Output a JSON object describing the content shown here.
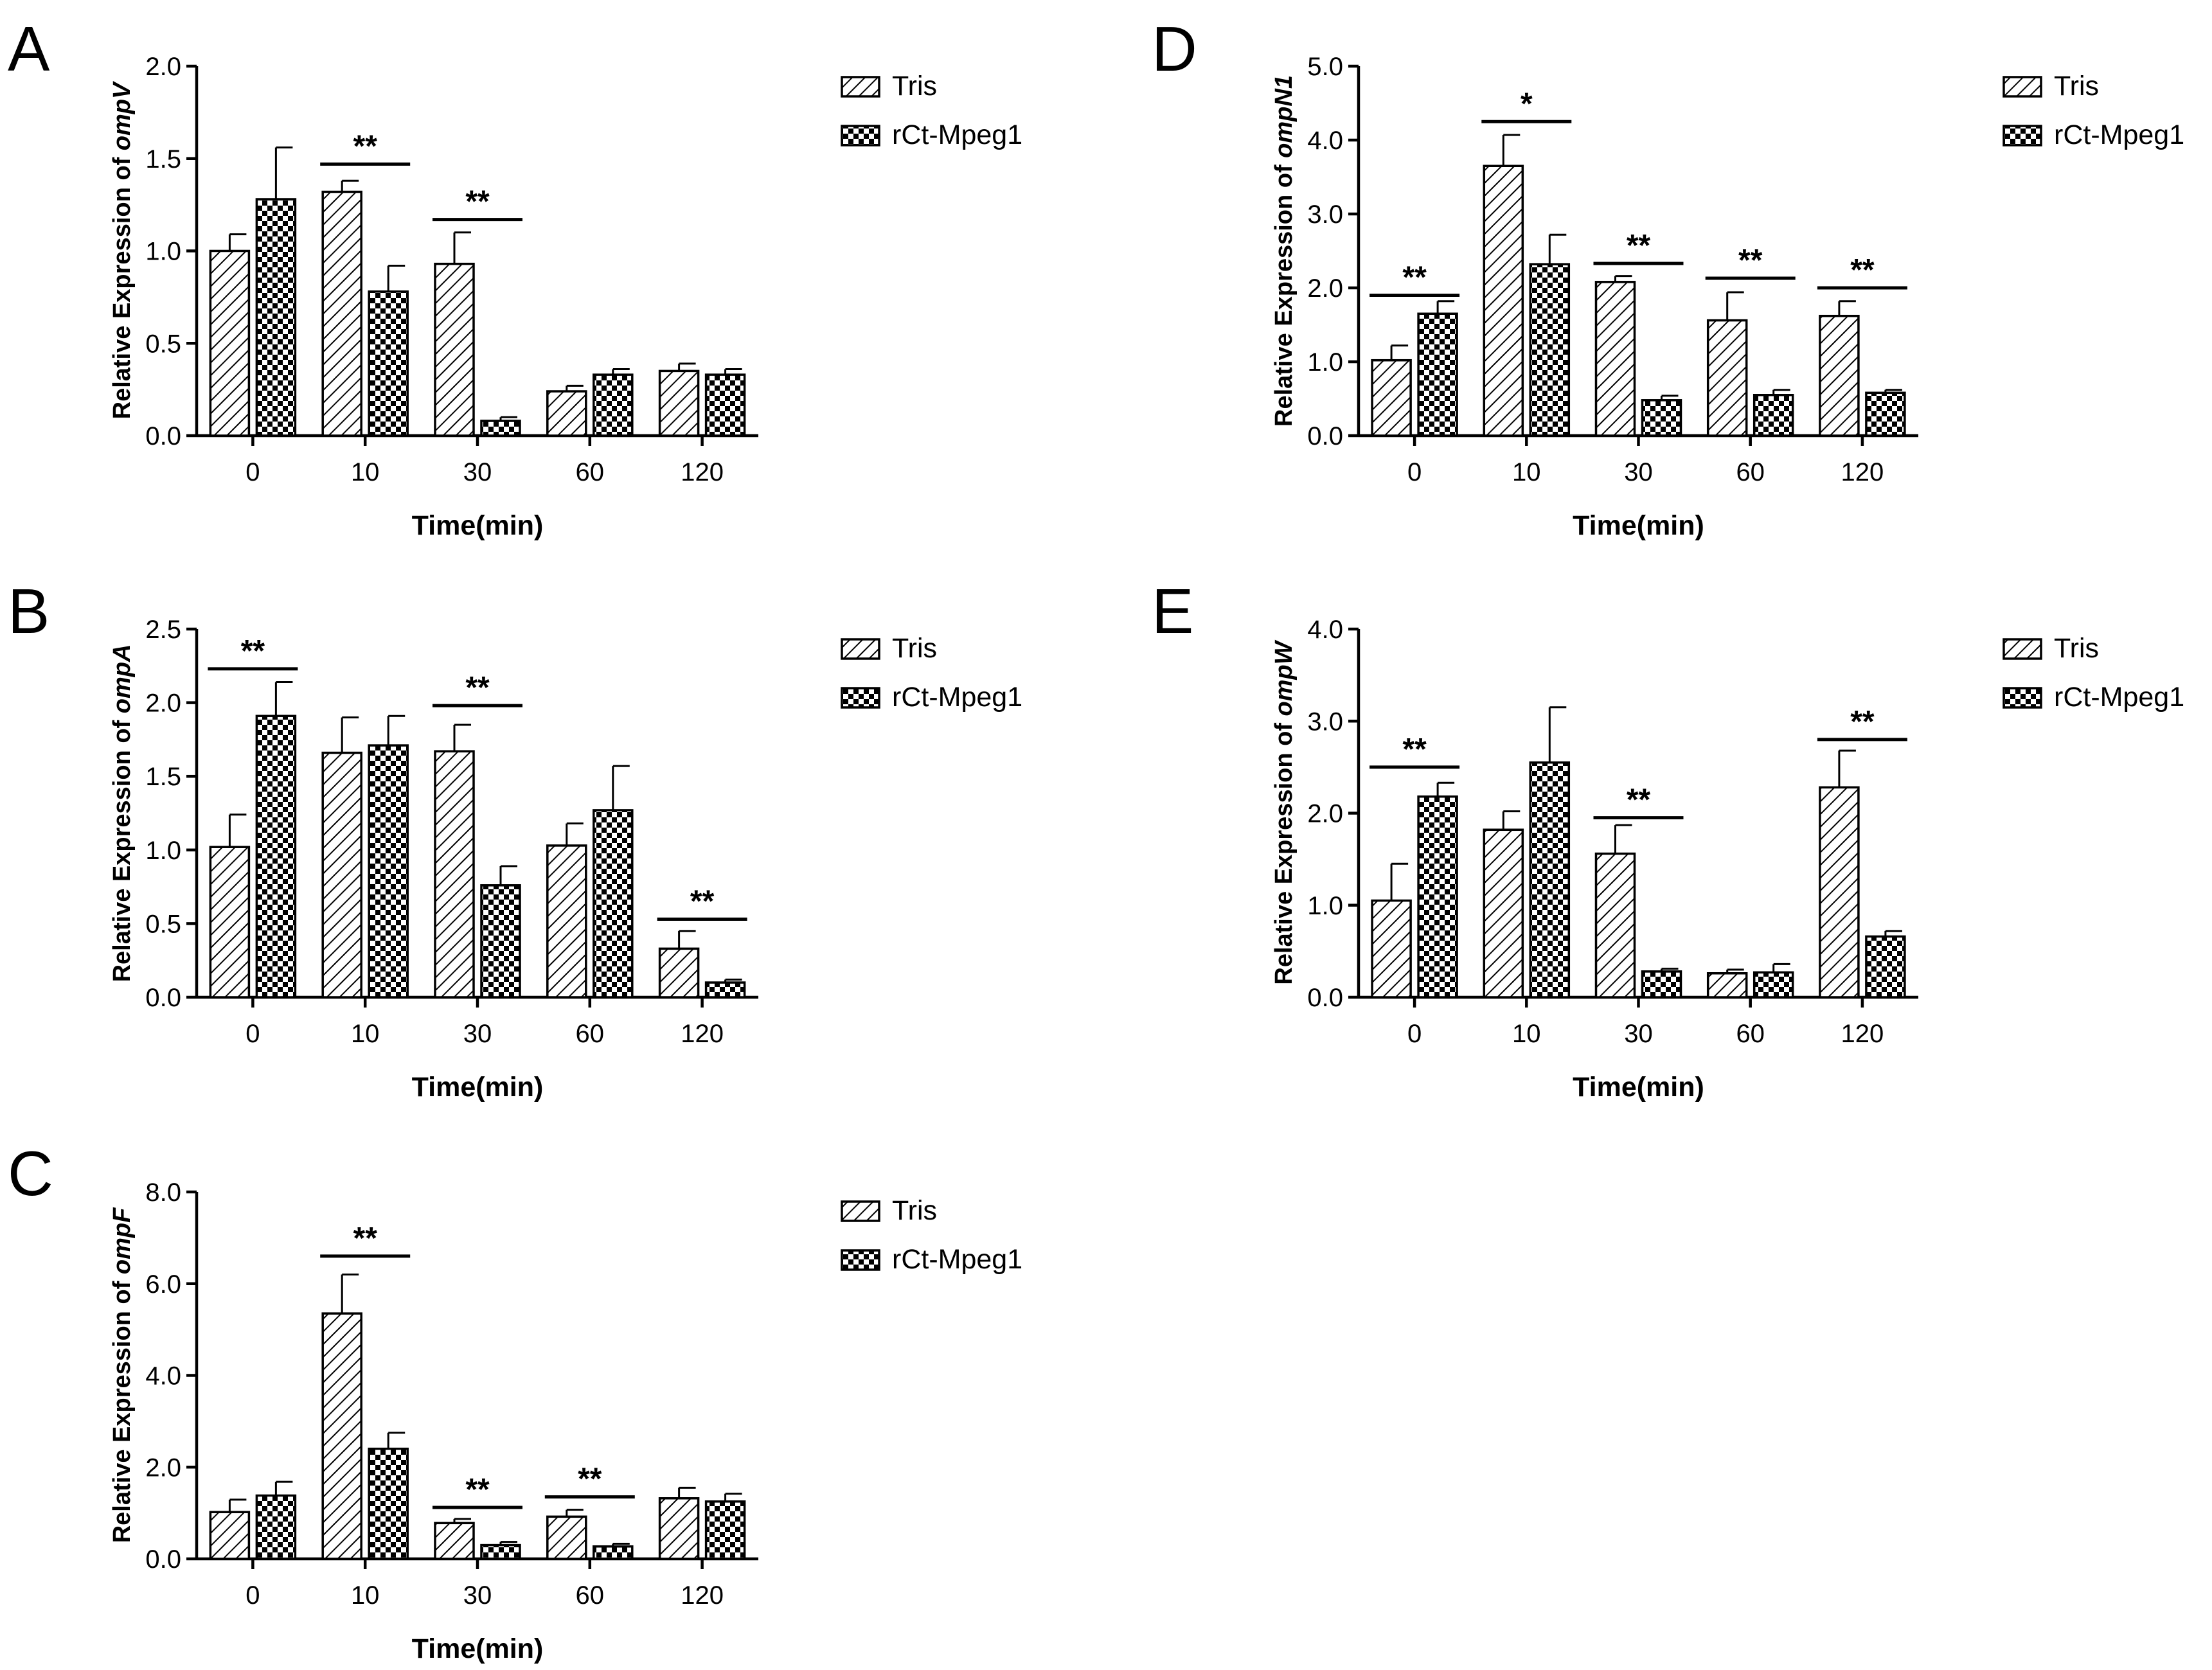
{
  "colors": {
    "ink": "#000000",
    "background": "#ffffff"
  },
  "legend": {
    "tris": "Tris",
    "mpeg": "rCt-Mpeg1"
  },
  "chart_data": [
    {
      "panel": "A",
      "type": "bar",
      "ylabel_prefix": "Relative Expression of ",
      "ylabel_gene": "ompV",
      "xlabel": "Time(min)",
      "categories": [
        "0",
        "10",
        "30",
        "60",
        "120"
      ],
      "ylim": [
        0,
        2.0
      ],
      "yticks": [
        "0.0",
        "0.5",
        "1.0",
        "1.5",
        "2.0"
      ],
      "ytick_values": [
        0,
        0.5,
        1.0,
        1.5,
        2.0
      ],
      "grid": false,
      "legend_position": "top-right",
      "series": [
        {
          "name": "Tris",
          "pattern": "diagonal-hatch",
          "values": [
            1.0,
            1.32,
            0.93,
            0.24,
            0.35
          ],
          "errors": [
            0.09,
            0.06,
            0.17,
            0.03,
            0.04
          ]
        },
        {
          "name": "rCt-Mpeg1",
          "pattern": "checkerboard",
          "values": [
            1.28,
            0.78,
            0.08,
            0.33,
            0.33
          ],
          "errors": [
            0.28,
            0.14,
            0.02,
            0.03,
            0.03
          ]
        }
      ],
      "significance": [
        {
          "category": "10",
          "label": "**",
          "at": 1.47
        },
        {
          "category": "30",
          "label": "**",
          "at": 1.17
        }
      ]
    },
    {
      "panel": "B",
      "type": "bar",
      "ylabel_prefix": "Relative Expression of ",
      "ylabel_gene": "ompA",
      "xlabel": "Time(min)",
      "categories": [
        "0",
        "10",
        "30",
        "60",
        "120"
      ],
      "ylim": [
        0,
        2.5
      ],
      "yticks": [
        "0.0",
        "0.5",
        "1.0",
        "1.5",
        "2.0",
        "2.5"
      ],
      "ytick_values": [
        0,
        0.5,
        1.0,
        1.5,
        2.0,
        2.5
      ],
      "grid": false,
      "legend_position": "top-right",
      "series": [
        {
          "name": "Tris",
          "pattern": "diagonal-hatch",
          "values": [
            1.02,
            1.66,
            1.67,
            1.03,
            0.33
          ],
          "errors": [
            0.22,
            0.24,
            0.18,
            0.15,
            0.12
          ]
        },
        {
          "name": "rCt-Mpeg1",
          "pattern": "checkerboard",
          "values": [
            1.91,
            1.71,
            0.76,
            1.27,
            0.1
          ],
          "errors": [
            0.23,
            0.2,
            0.13,
            0.3,
            0.02
          ]
        }
      ],
      "significance": [
        {
          "category": "0",
          "label": "**",
          "at": 2.23
        },
        {
          "category": "30",
          "label": "**",
          "at": 1.98
        },
        {
          "category": "120",
          "label": "**",
          "at": 0.53
        }
      ]
    },
    {
      "panel": "C",
      "type": "bar",
      "ylabel_prefix": "Relative Expression of ",
      "ylabel_gene": "ompF",
      "xlabel": "Time(min)",
      "categories": [
        "0",
        "10",
        "30",
        "60",
        "120"
      ],
      "ylim": [
        0,
        8.0
      ],
      "yticks": [
        "0.0",
        "2.0",
        "4.0",
        "6.0",
        "8.0"
      ],
      "ytick_values": [
        0,
        2.0,
        4.0,
        6.0,
        8.0
      ],
      "grid": false,
      "legend_position": "top-right",
      "series": [
        {
          "name": "Tris",
          "pattern": "diagonal-hatch",
          "values": [
            1.02,
            5.35,
            0.78,
            0.92,
            1.32
          ],
          "errors": [
            0.27,
            0.85,
            0.09,
            0.15,
            0.23
          ]
        },
        {
          "name": "rCt-Mpeg1",
          "pattern": "checkerboard",
          "values": [
            1.38,
            2.4,
            0.3,
            0.27,
            1.25
          ],
          "errors": [
            0.3,
            0.35,
            0.07,
            0.06,
            0.17
          ]
        }
      ],
      "significance": [
        {
          "category": "10",
          "label": "**",
          "at": 6.6
        },
        {
          "category": "30",
          "label": "**",
          "at": 1.12
        },
        {
          "category": "60",
          "label": "**",
          "at": 1.35
        }
      ]
    },
    {
      "panel": "D",
      "type": "bar",
      "ylabel_prefix": "Relative Expression of ",
      "ylabel_gene": "ompN1",
      "xlabel": "Time(min)",
      "categories": [
        "0",
        "10",
        "30",
        "60",
        "120"
      ],
      "ylim": [
        0,
        5.0
      ],
      "yticks": [
        "0.0",
        "1.0",
        "2.0",
        "3.0",
        "4.0",
        "5.0"
      ],
      "ytick_values": [
        0,
        1.0,
        2.0,
        3.0,
        4.0,
        5.0
      ],
      "grid": false,
      "legend_position": "top-right",
      "series": [
        {
          "name": "Tris",
          "pattern": "diagonal-hatch",
          "values": [
            1.02,
            3.65,
            2.08,
            1.56,
            1.62
          ],
          "errors": [
            0.2,
            0.42,
            0.08,
            0.38,
            0.2
          ]
        },
        {
          "name": "rCt-Mpeg1",
          "pattern": "checkerboard",
          "values": [
            1.65,
            2.32,
            0.48,
            0.55,
            0.58
          ],
          "errors": [
            0.17,
            0.4,
            0.06,
            0.07,
            0.04
          ]
        }
      ],
      "significance": [
        {
          "category": "0",
          "label": "**",
          "at": 1.9
        },
        {
          "category": "10",
          "label": "*",
          "at": 4.25
        },
        {
          "category": "30",
          "label": "**",
          "at": 2.33
        },
        {
          "category": "60",
          "label": "**",
          "at": 2.13
        },
        {
          "category": "120",
          "label": "**",
          "at": 2.0
        }
      ]
    },
    {
      "panel": "E",
      "type": "bar",
      "ylabel_prefix": "Relative Expression of ",
      "ylabel_gene": "ompW",
      "xlabel": "Time(min)",
      "categories": [
        "0",
        "10",
        "30",
        "60",
        "120"
      ],
      "ylim": [
        0,
        4.0
      ],
      "yticks": [
        "0.0",
        "1.0",
        "2.0",
        "3.0",
        "4.0"
      ],
      "ytick_values": [
        0,
        1.0,
        2.0,
        3.0,
        4.0
      ],
      "grid": false,
      "legend_position": "top-right",
      "series": [
        {
          "name": "Tris",
          "pattern": "diagonal-hatch",
          "values": [
            1.05,
            1.82,
            1.56,
            0.26,
            2.28
          ],
          "errors": [
            0.4,
            0.2,
            0.31,
            0.04,
            0.4
          ]
        },
        {
          "name": "rCt-Mpeg1",
          "pattern": "checkerboard",
          "values": [
            2.18,
            2.55,
            0.28,
            0.27,
            0.66
          ],
          "errors": [
            0.15,
            0.6,
            0.03,
            0.09,
            0.06
          ]
        }
      ],
      "significance": [
        {
          "category": "0",
          "label": "**",
          "at": 2.5
        },
        {
          "category": "30",
          "label": "**",
          "at": 1.95
        },
        {
          "category": "120",
          "label": "**",
          "at": 2.8
        }
      ]
    }
  ]
}
